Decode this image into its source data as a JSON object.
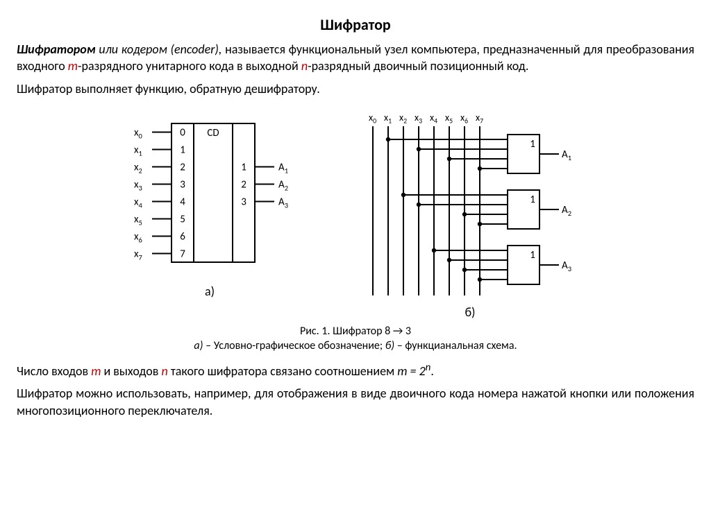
{
  "title": "Шифратор",
  "para1": {
    "lead_bi": "Шифратором",
    "lead_i": " или кодером (encoder),",
    "rest1": " называется функциональный узел компьютера, предназначенный для преобразования входного ",
    "m": "m",
    "rest2": "-разрядного унитарного кода в выходной    ",
    "n": "n",
    "rest3": "-разрядный двоичный позиционный код."
  },
  "para2": "Шифратор выполняет функцию, обратную дешифратору.",
  "fig": {
    "label_a": "а)",
    "label_b": "б)",
    "caption_line1": "Рис. 1. Шифратор 8 → 3",
    "caption_a_i": "а)",
    "caption_a_rest": " – Условно-графическое обозначение; ",
    "caption_b_i": "б)",
    "caption_b_rest": " – функцианальная схема."
  },
  "para3": {
    "a": "Число входов ",
    "m": "m",
    "b": " и выходов ",
    "n": "n",
    "c": " такого шифратора связано соотношением ",
    "eq_i": "m = 2",
    "eq_sup": "n",
    "d": "."
  },
  "para4": "Шифратор можно использовать, например, для отображения в виде двоичного кода номера нажатой кнопки или положения многопозиционного переключателя.",
  "diagA": {
    "inputs": [
      "x",
      "x",
      "x",
      "x",
      "x",
      "x",
      "x",
      "x"
    ],
    "input_sub": [
      "0",
      "1",
      "2",
      "3",
      "4",
      "5",
      "6",
      "7"
    ],
    "pin_in": [
      "0",
      "1",
      "2",
      "3",
      "4",
      "5",
      "6",
      "7"
    ],
    "block_label": "CD",
    "pin_out": [
      "1",
      "2",
      "3"
    ],
    "outputs": [
      "A",
      "A",
      "A"
    ],
    "output_sub": [
      "1",
      "2",
      "3"
    ],
    "stroke": "#000000",
    "stroke_w": 2,
    "font_size": 15
  },
  "diagB": {
    "top_labels": [
      "x",
      "x",
      "x",
      "x",
      "x",
      "x",
      "x",
      "x"
    ],
    "top_sub": [
      "0",
      "1",
      "2",
      "3",
      "4",
      "5",
      "6",
      "7"
    ],
    "gate_label": "1",
    "outputs": [
      "A",
      "A",
      "A"
    ],
    "output_sub": [
      "1",
      "2",
      "3"
    ],
    "gates": [
      {
        "lines": [
          1,
          3,
          5,
          7
        ]
      },
      {
        "lines": [
          2,
          3,
          6,
          7
        ]
      },
      {
        "lines": [
          4,
          5,
          6,
          7
        ]
      }
    ],
    "stroke": "#000000",
    "stroke_w": 2,
    "font_size": 15,
    "dot_r": 3.2
  }
}
